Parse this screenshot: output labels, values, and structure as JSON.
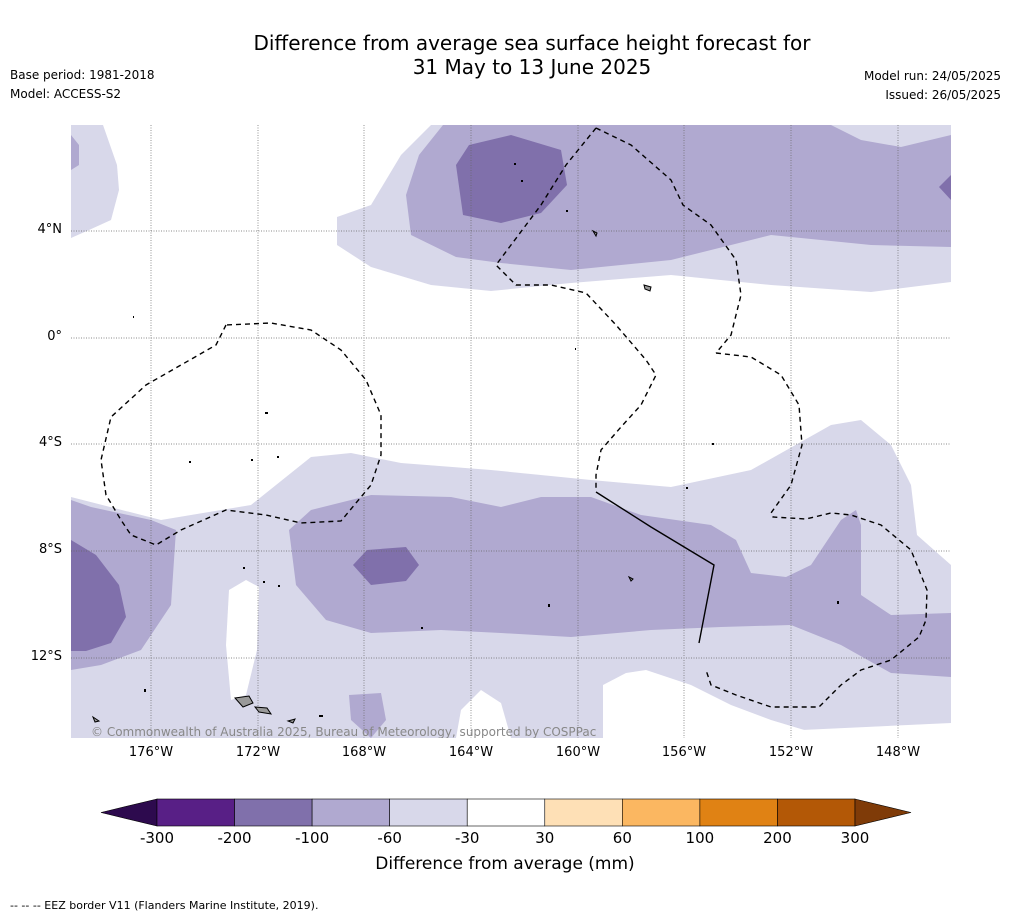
{
  "header": {
    "title_line1": "Difference from average sea surface height forecast for",
    "title_line2": "31 May to 13 June 2025",
    "base_period": "Base period: 1981-2018",
    "model": "Model: ACCESS-S2",
    "model_run": "Model run: 24/05/2025",
    "issued": "Issued: 26/05/2025"
  },
  "map": {
    "copyright": "© Commonwealth of Australia 2025, Bureau of Meteorology, supported by COSPPac",
    "lon_labels": [
      "176°W",
      "172°W",
      "168°W",
      "164°W",
      "160°W",
      "156°W",
      "152°W",
      "148°W"
    ],
    "lat_labels": [
      "4°N",
      "0°",
      "4°S",
      "8°S",
      "12°S"
    ],
    "colors": {
      "band_-60_-30": "#d8d8ea",
      "band_-100_-60": "#b0a9d0",
      "band_-200_-100": "#8070ab",
      "land": "#999999"
    }
  },
  "colorbar": {
    "title": "Difference from average (mm)",
    "labels": [
      "-300",
      "-200",
      "-100",
      "-60",
      "-30",
      "30",
      "60",
      "100",
      "200",
      "300"
    ],
    "colors": [
      "#581f86",
      "#8070ab",
      "#b0a9d0",
      "#d8d8ea",
      "#ffffff",
      "#fee0b6",
      "#fbb761",
      "#e08214",
      "#b35806"
    ],
    "under_color": "#2d0a4e",
    "over_color": "#7f3b08"
  },
  "footer": {
    "note": "--  --  -- EEZ border V11 (Flanders Marine Institute, 2019)."
  }
}
